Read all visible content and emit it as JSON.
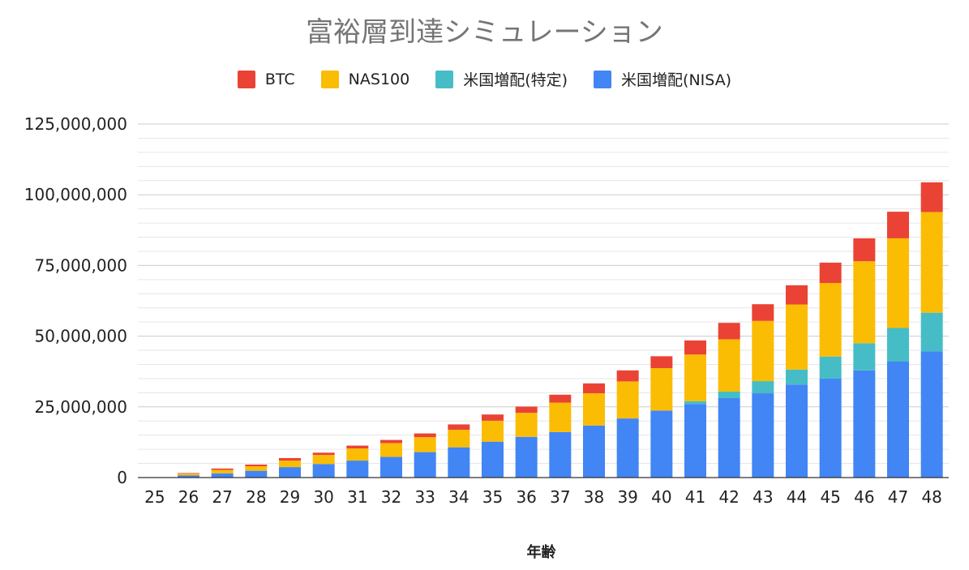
{
  "chart_data": {
    "type": "bar",
    "stacked": true,
    "title": "富裕層到達シミュレーション",
    "xlabel": "年齢",
    "ylabel": "",
    "categories": [
      "25",
      "26",
      "27",
      "28",
      "29",
      "30",
      "31",
      "32",
      "33",
      "34",
      "35",
      "36",
      "37",
      "38",
      "39",
      "40",
      "41",
      "42",
      "43",
      "44",
      "45",
      "46",
      "47",
      "48"
    ],
    "ylim": [
      0,
      125000000
    ],
    "yticks": [
      0,
      25000000,
      50000000,
      75000000,
      100000000,
      125000000
    ],
    "ytick_labels": [
      "0",
      "25,000,000",
      "50,000,000",
      "75,000,000",
      "100,000,000",
      "125,000,000"
    ],
    "grid": true,
    "legend_position": "top",
    "series": [
      {
        "name": "米国増配(NISA)",
        "color": "#4285F4",
        "values": [
          0,
          800000,
          1500000,
          2400000,
          3700000,
          4800000,
          6000000,
          7300000,
          9000000,
          10700000,
          12700000,
          14400000,
          16100000,
          18400000,
          20900000,
          23700000,
          26000000,
          28100000,
          29800000,
          32900000,
          35000000,
          37900000,
          41000000,
          44600000
        ]
      },
      {
        "name": "米国増配(特定)",
        "color": "#46BDC6",
        "values": [
          0,
          0,
          0,
          0,
          0,
          0,
          0,
          0,
          0,
          0,
          0,
          0,
          0,
          0,
          0,
          0,
          1000000,
          2300000,
          4300000,
          5300000,
          7800000,
          9600000,
          11900000,
          13700000
        ]
      },
      {
        "name": "NAS100",
        "color": "#FBBC04",
        "values": [
          0,
          600000,
          1200000,
          1600000,
          2300000,
          3200000,
          4300000,
          4900000,
          5300000,
          6200000,
          7400000,
          8500000,
          10400000,
          11400000,
          13100000,
          15000000,
          16500000,
          18500000,
          21300000,
          23000000,
          26000000,
          29000000,
          31700000,
          35600000
        ]
      },
      {
        "name": "BTC",
        "color": "#EA4335",
        "values": [
          0,
          200000,
          500000,
          600000,
          900000,
          800000,
          1000000,
          1100000,
          1300000,
          1900000,
          2200000,
          2200000,
          2800000,
          3500000,
          3900000,
          4200000,
          5000000,
          5800000,
          5900000,
          6800000,
          7200000,
          8100000,
          9400000,
          10500000
        ]
      }
    ],
    "legend_order": [
      "BTC",
      "NAS100",
      "米国増配(特定)",
      "米国増配(NISA)"
    ]
  },
  "legend_items": [
    {
      "label": "BTC",
      "color": "#EA4335"
    },
    {
      "label": "NAS100",
      "color": "#FBBC04"
    },
    {
      "label": "米国増配(特定)",
      "color": "#46BDC6"
    },
    {
      "label": "米国増配(NISA)",
      "color": "#4285F4"
    }
  ]
}
